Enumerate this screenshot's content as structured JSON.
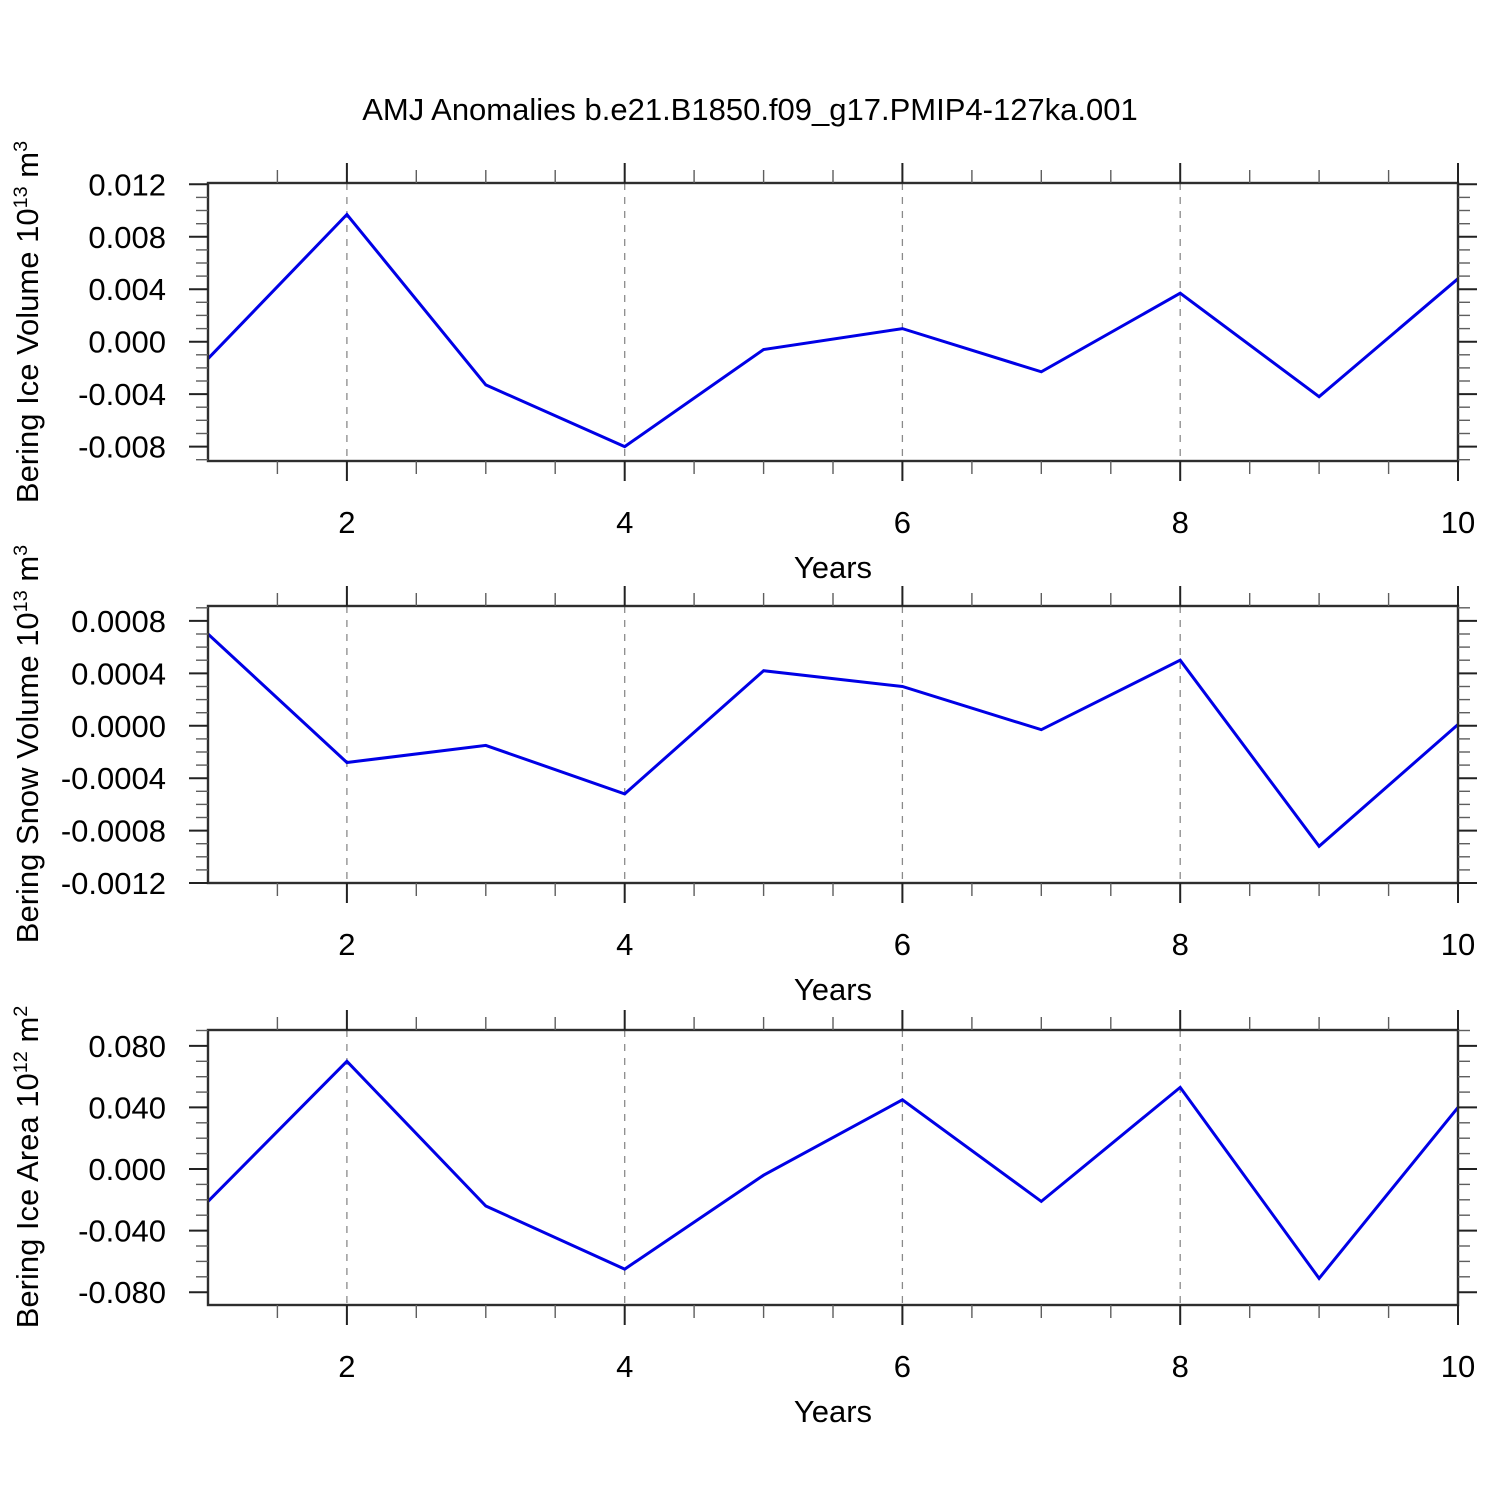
{
  "title": "AMJ Anomalies b.e21.B1850.f09_g17.PMIP4-127ka.001",
  "style": {
    "line_color": "#0000E6",
    "grid_color": "#8A8A8A",
    "frame_color": "#2E2E2E",
    "major_tick_color": "#222222",
    "minor_tick_color": "#5E5E5E",
    "text_color": "#000000",
    "background": "#FFFFFF"
  },
  "chart_data": [
    {
      "type": "line",
      "series_name": "Bering Ice Volume anomaly",
      "ylabel": {
        "text": "Bering Ice Volume 10",
        "sup": "13",
        "text2": " m",
        "sup2": "3"
      },
      "ylabel_text": "Bering Ice Volume 10^13 m^3",
      "xlabel": "Years",
      "x": [
        1,
        2,
        3,
        4,
        5,
        6,
        7,
        8,
        9,
        10
      ],
      "values": [
        -0.0013,
        0.0097,
        -0.0033,
        -0.008,
        -0.0006,
        0.001,
        -0.0023,
        0.0037,
        -0.0042,
        0.0048
      ],
      "xlim": [
        1,
        10
      ],
      "ylim": [
        -0.0091,
        0.0121
      ],
      "yticks_major": [
        0.012,
        0.008,
        0.004,
        0,
        -0.004,
        -0.008
      ],
      "ytick_labels": [
        "0.012",
        "0.008",
        "0.004",
        "0.000",
        "-0.004",
        "-0.008"
      ],
      "ytick_minor_step": 0.001,
      "xticks_major": [
        2,
        4,
        6,
        8,
        10
      ],
      "xtick_labels": [
        "2",
        "4",
        "6",
        "8",
        "10"
      ],
      "xtick_minor_step": 0.5,
      "gridlines_x": [
        2,
        4,
        6,
        8
      ],
      "grid": "vertical-dashed",
      "legend": "none"
    },
    {
      "type": "line",
      "series_name": "Bering Snow Volume anomaly",
      "ylabel": {
        "text": "Bering Snow Volume 10",
        "sup": "13",
        "text2": " m",
        "sup2": "3"
      },
      "ylabel_text": "Bering Snow Volume 10^13 m^3",
      "xlabel": "Years",
      "x": [
        1,
        2,
        3,
        4,
        5,
        6,
        7,
        8,
        9,
        10
      ],
      "values": [
        0.0007,
        -0.00028,
        -0.00015,
        -0.00052,
        0.00042,
        0.0003,
        -3e-05,
        0.0005,
        -0.00092,
        1e-05
      ],
      "xlim": [
        1,
        10
      ],
      "ylim": [
        -0.0012,
        0.000914
      ],
      "yticks_major": [
        0.0008,
        0.0004,
        0,
        -0.0004,
        -0.0008,
        -0.0012
      ],
      "ytick_labels": [
        "0.0008",
        "0.0004",
        "0.0000",
        "-0.0004",
        "-0.0008",
        "-0.0012"
      ],
      "ytick_minor_step": 0.0001,
      "xticks_major": [
        2,
        4,
        6,
        8,
        10
      ],
      "xtick_labels": [
        "2",
        "4",
        "6",
        "8",
        "10"
      ],
      "xtick_minor_step": 0.5,
      "gridlines_x": [
        2,
        4,
        6,
        8
      ],
      "grid": "vertical-dashed",
      "legend": "none"
    },
    {
      "type": "line",
      "series_name": "Bering Ice Area anomaly",
      "ylabel": {
        "text": "Bering Ice Area 10",
        "sup": "12",
        "text2": " m",
        "sup2": "2"
      },
      "ylabel_text": "Bering Ice Area 10^12 m^2",
      "xlabel": "Years",
      "x": [
        1,
        2,
        3,
        4,
        5,
        6,
        7,
        8,
        9,
        10
      ],
      "values": [
        -0.021,
        0.07,
        -0.024,
        -0.065,
        -0.004,
        0.045,
        -0.021,
        0.053,
        -0.071,
        0.04
      ],
      "xlim": [
        1,
        10
      ],
      "ylim": [
        -0.0883,
        0.0903
      ],
      "yticks_major": [
        0.08,
        0.04,
        0,
        -0.04,
        -0.08
      ],
      "ytick_labels": [
        "0.080",
        "0.040",
        "0.000",
        "-0.040",
        "-0.080"
      ],
      "ytick_minor_step": 0.01,
      "xticks_major": [
        2,
        4,
        6,
        8,
        10
      ],
      "xtick_labels": [
        "2",
        "4",
        "6",
        "8",
        "10"
      ],
      "xtick_minor_step": 0.5,
      "gridlines_x": [
        2,
        4,
        6,
        8
      ],
      "grid": "vertical-dashed",
      "legend": "none"
    }
  ]
}
